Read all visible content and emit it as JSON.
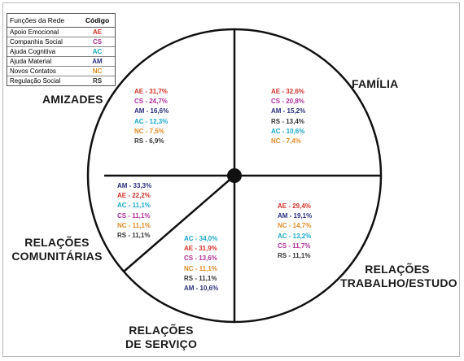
{
  "legend": {
    "header": [
      "Funções da Rede",
      "Código"
    ],
    "rows": [
      {
        "name": "Apoio Emocional",
        "code": "AE",
        "color": "#d2332b"
      },
      {
        "name": "Companhia Social",
        "code": "CS",
        "color": "#b0329a"
      },
      {
        "name": "Ajuda Cognitiva",
        "code": "AC",
        "color": "#1aa8c8"
      },
      {
        "name": "Ajuda Material",
        "code": "AM",
        "color": "#2b2f7e"
      },
      {
        "name": "Novos Contatos",
        "code": "NC",
        "color": "#e08a28"
      },
      {
        "name": "Regulação Social",
        "code": "RS",
        "color": "#333333"
      }
    ]
  },
  "sectors": {
    "familia": {
      "title": [
        "FAMÍLIA"
      ],
      "items": [
        {
          "text": "AE - 32,6%",
          "color": "#d2332b"
        },
        {
          "text": "CS - 20,8%",
          "color": "#b0329a"
        },
        {
          "text": "AM - 15,2%",
          "color": "#2b2f7e"
        },
        {
          "text": "RS - 13,4%",
          "color": "#333333"
        },
        {
          "text": "AC - 10,6%",
          "color": "#1aa8c8"
        },
        {
          "text": "NC - 7,4%",
          "color": "#e08a28"
        }
      ]
    },
    "amizades": {
      "title": [
        "AMIZADES"
      ],
      "items": [
        {
          "text": "AE - 31,7%",
          "color": "#d2332b"
        },
        {
          "text": "CS - 24,7%",
          "color": "#b0329a"
        },
        {
          "text": "AM - 16,6%",
          "color": "#2b2f7e"
        },
        {
          "text": "AC - 12,3%",
          "color": "#1aa8c8"
        },
        {
          "text": "NC - 7,5%",
          "color": "#e08a28"
        },
        {
          "text": "RS - 6,9%",
          "color": "#333333"
        }
      ]
    },
    "comunitarias": {
      "title": [
        "RELAÇÕES",
        "COMUNITÁRIAS"
      ],
      "items": [
        {
          "text": "AM - 33,3%",
          "color": "#2b2f7e"
        },
        {
          "text": "AE - 22,2%",
          "color": "#d2332b"
        },
        {
          "text": "AC - 11,1%",
          "color": "#1aa8c8"
        },
        {
          "text": "CS - 11,1%",
          "color": "#b0329a"
        },
        {
          "text": "NC - 11,1%",
          "color": "#e08a28"
        },
        {
          "text": "RS - 11,1%",
          "color": "#333333"
        }
      ]
    },
    "servico": {
      "title": [
        "RELAÇÕES",
        "DE SERVIÇO"
      ],
      "items": [
        {
          "text": "AC - 34,0%",
          "color": "#1aa8c8"
        },
        {
          "text": "AE - 31,9%",
          "color": "#d2332b"
        },
        {
          "text": "CS - 13,6%",
          "color": "#b0329a"
        },
        {
          "text": "NC - 11,1%",
          "color": "#e08a28"
        },
        {
          "text": "RS - 11,1%",
          "color": "#333333"
        },
        {
          "text": "AM - 10,6%",
          "color": "#2b2f7e"
        }
      ]
    },
    "trabalho": {
      "title": [
        "RELAÇÕES",
        "TRABALHO/ESTUDO"
      ],
      "items": [
        {
          "text": "AE - 29,4%",
          "color": "#d2332b"
        },
        {
          "text": "AM - 19,1%",
          "color": "#2b2f7e"
        },
        {
          "text": "NC - 14,7%",
          "color": "#e08a28"
        },
        {
          "text": "AC - 13,2%",
          "color": "#1aa8c8"
        },
        {
          "text": "CS - 11,7%",
          "color": "#b0329a"
        },
        {
          "text": "RS - 11,1%",
          "color": "#333333"
        }
      ]
    }
  }
}
